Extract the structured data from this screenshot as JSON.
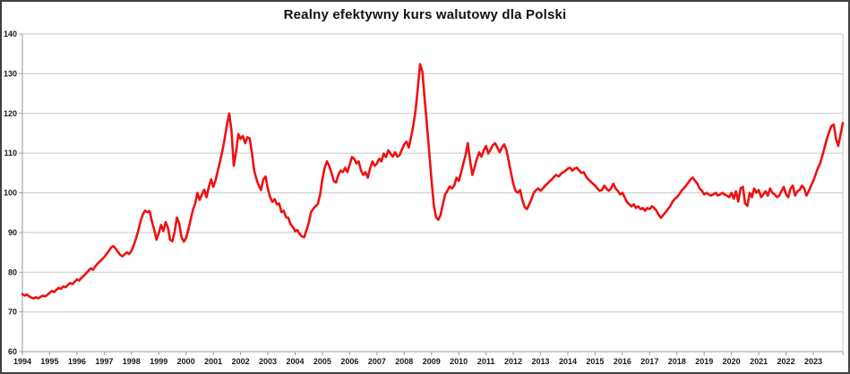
{
  "title": "Realny efektywny kurs walutowy dla Polski",
  "colors": {
    "line": "#ee1111",
    "grid": "#c9c9c9",
    "axis": "#9a9a9a",
    "tick_text": "#1a1a1a",
    "background": "#ffffff",
    "frame_border": "#3f3f3f"
  },
  "chart_data": {
    "type": "line",
    "title": "Realny efektywny kurs walutowy dla Polski",
    "xlabel": "",
    "ylabel": "",
    "frequency": "monthly",
    "x_start": "1994-01",
    "x_end": "2024-02",
    "ylim": [
      60,
      140
    ],
    "y_ticks": [
      60,
      70,
      80,
      90,
      100,
      110,
      120,
      130,
      140
    ],
    "x_tick_labels": [
      "1994",
      "1995",
      "1996",
      "1997",
      "1998",
      "1999",
      "2000",
      "2001",
      "2002",
      "2003",
      "2004",
      "2005",
      "2006",
      "2007",
      "2008",
      "2009",
      "2010",
      "2011",
      "2012",
      "2013",
      "2014",
      "2015",
      "2016",
      "2017",
      "2018",
      "2019",
      "2020",
      "2021",
      "2022",
      "2023"
    ],
    "grid": "horizontal",
    "legend": "none",
    "series": [
      {
        "name": "Realny efektywny kurs walutowy dla Polski",
        "color": "#ee1111",
        "values": [
          74.5,
          74.1,
          74.4,
          73.9,
          73.6,
          73.4,
          73.7,
          73.4,
          73.8,
          74.1,
          73.9,
          74.3,
          74.8,
          75.3,
          75.0,
          75.6,
          76.1,
          75.8,
          76.4,
          76.2,
          76.8,
          77.3,
          77.0,
          77.6,
          78.2,
          77.9,
          78.6,
          79.1,
          79.7,
          80.3,
          81.0,
          80.6,
          81.4,
          82.1,
          82.7,
          83.2,
          83.8,
          84.6,
          85.3,
          86.2,
          86.6,
          86.0,
          85.2,
          84.4,
          84.0,
          84.5,
          85.0,
          84.6,
          85.4,
          86.8,
          88.5,
          90.5,
          92.8,
          94.6,
          95.5,
          95.1,
          95.4,
          92.8,
          90.7,
          88.2,
          89.8,
          91.9,
          90.4,
          92.6,
          91.3,
          88.2,
          87.8,
          90.2,
          93.8,
          92.3,
          88.9,
          87.7,
          88.6,
          90.6,
          93.2,
          95.6,
          97.2,
          100.0,
          98.2,
          99.6,
          100.8,
          98.9,
          101.4,
          103.4,
          101.5,
          103.2,
          105.6,
          108.0,
          110.6,
          113.6,
          117.2,
          120.0,
          115.8,
          106.8,
          110.2,
          114.8,
          113.6,
          114.3,
          112.5,
          114.0,
          113.7,
          110.0,
          105.6,
          103.4,
          101.8,
          100.7,
          103.4,
          104.1,
          101.1,
          98.9,
          97.7,
          98.4,
          97.1,
          97.3,
          95.1,
          95.5,
          93.9,
          93.7,
          92.1,
          91.4,
          90.3,
          90.6,
          89.6,
          89.0,
          88.8,
          90.6,
          92.4,
          95.1,
          96.0,
          96.6,
          97.2,
          99.6,
          103.4,
          106.3,
          107.9,
          106.8,
          105.0,
          103.0,
          102.6,
          104.5,
          105.6,
          105.2,
          106.3,
          105.2,
          107.1,
          109.0,
          108.6,
          107.4,
          107.9,
          105.6,
          104.5,
          105.2,
          103.8,
          106.1,
          107.9,
          106.8,
          107.4,
          108.6,
          107.9,
          109.9,
          109.0,
          110.7,
          109.9,
          109.1,
          110.2,
          109.1,
          109.5,
          110.9,
          112.2,
          112.9,
          111.4,
          114.0,
          116.9,
          120.8,
          126.4,
          132.4,
          130.5,
          123.7,
          117.0,
          110.2,
          103.4,
          97.0,
          93.9,
          93.2,
          94.4,
          97.1,
          99.6,
          100.5,
          101.6,
          101.1,
          101.8,
          103.8,
          103.0,
          105.0,
          107.4,
          109.5,
          112.5,
          108.0,
          104.5,
          106.5,
          108.6,
          110.2,
          109.1,
          110.7,
          111.8,
          109.9,
          110.9,
          112.0,
          112.5,
          111.4,
          110.2,
          111.4,
          112.2,
          110.7,
          107.9,
          105.0,
          102.3,
          100.5,
          100.0,
          100.7,
          98.2,
          96.4,
          95.9,
          97.1,
          98.4,
          100.0,
          100.7,
          101.1,
          100.5,
          101.1,
          101.8,
          102.3,
          102.9,
          103.4,
          104.1,
          104.5,
          104.1,
          104.8,
          105.2,
          105.6,
          106.1,
          106.3,
          105.6,
          106.1,
          106.3,
          105.6,
          105.0,
          105.2,
          104.1,
          103.4,
          102.9,
          102.3,
          101.8,
          101.1,
          100.5,
          100.7,
          101.8,
          101.1,
          100.5,
          101.1,
          102.3,
          101.1,
          100.5,
          99.6,
          100.0,
          98.9,
          97.7,
          97.1,
          96.6,
          97.1,
          96.2,
          96.6,
          95.9,
          96.2,
          95.5,
          96.2,
          95.9,
          96.6,
          96.2,
          95.5,
          94.4,
          93.7,
          94.4,
          95.1,
          95.9,
          96.6,
          97.7,
          98.4,
          98.9,
          99.6,
          100.5,
          101.1,
          101.8,
          102.6,
          103.4,
          103.8,
          103.0,
          102.3,
          101.1,
          100.5,
          99.6,
          100.0,
          99.6,
          99.3,
          99.6,
          100.0,
          99.3,
          99.6,
          100.0,
          99.6,
          99.3,
          98.9,
          100.0,
          98.5,
          100.4,
          97.8,
          101.1,
          101.5,
          97.3,
          96.7,
          100.0,
          98.9,
          101.1,
          100.0,
          100.7,
          98.9,
          99.6,
          100.4,
          99.3,
          101.1,
          100.0,
          99.6,
          98.9,
          99.3,
          100.4,
          101.5,
          99.6,
          98.9,
          101.1,
          101.8,
          99.3,
          100.4,
          100.7,
          101.8,
          101.1,
          99.3,
          100.4,
          101.8,
          103.0,
          104.6,
          106.2,
          107.4,
          109.4,
          111.5,
          113.6,
          115.4,
          116.8,
          117.2,
          113.6,
          111.8,
          114.7,
          117.6
        ]
      }
    ]
  }
}
